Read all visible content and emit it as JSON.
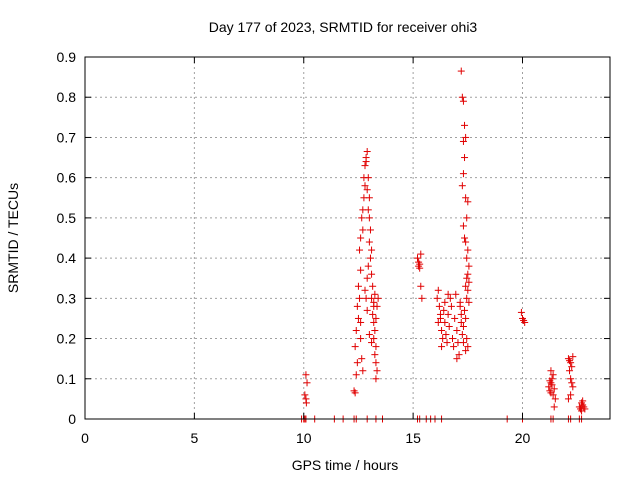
{
  "chart_data": {
    "type": "scatter",
    "title": "Day 177 of 2023, SRMTID for receiver ohi3",
    "xlabel": "GPS time / hours",
    "ylabel": "SRMTID / TECUs",
    "xlim": [
      0,
      24
    ],
    "ylim": [
      0,
      0.9
    ],
    "xticks": [
      0,
      5,
      10,
      15,
      20
    ],
    "xtick_labels": [
      "0",
      "5",
      "10",
      "15",
      "20"
    ],
    "yticks": [
      0,
      0.1,
      0.2,
      0.3,
      0.4,
      0.5,
      0.6,
      0.7,
      0.8,
      0.9
    ],
    "ytick_labels": [
      "0",
      "0.1",
      "0.2",
      "0.3",
      "0.4",
      "0.5",
      "0.6",
      "0.7",
      "0.8",
      "0.9"
    ],
    "grid": true,
    "marker": "+",
    "color": "#e00000",
    "series": [
      {
        "name": "SRMTID",
        "points": [
          [
            9.9,
            0
          ],
          [
            10.0,
            0
          ],
          [
            10.05,
            0
          ],
          [
            10.1,
            0
          ],
          [
            10.5,
            0
          ],
          [
            11.4,
            0
          ],
          [
            11.8,
            0
          ],
          [
            12.3,
            0
          ],
          [
            12.4,
            0
          ],
          [
            12.9,
            0
          ],
          [
            13.3,
            0
          ],
          [
            13.6,
            0
          ],
          [
            15.2,
            0
          ],
          [
            15.3,
            0
          ],
          [
            15.6,
            0
          ],
          [
            15.8,
            0
          ],
          [
            16.0,
            0
          ],
          [
            16.3,
            0
          ],
          [
            19.3,
            0
          ],
          [
            20.0,
            0
          ],
          [
            21.3,
            0
          ],
          [
            21.4,
            0
          ],
          [
            22.1,
            0
          ],
          [
            22.2,
            0
          ],
          [
            22.6,
            0
          ],
          [
            22.7,
            0
          ],
          [
            10.1,
            0.11
          ],
          [
            10.15,
            0.09
          ],
          [
            10.05,
            0.06
          ],
          [
            10.1,
            0.05
          ],
          [
            10.12,
            0.04
          ],
          [
            12.3,
            0.07
          ],
          [
            12.35,
            0.065
          ],
          [
            12.4,
            0.11
          ],
          [
            12.45,
            0.14
          ],
          [
            12.35,
            0.18
          ],
          [
            12.4,
            0.22
          ],
          [
            12.5,
            0.25
          ],
          [
            12.45,
            0.28
          ],
          [
            12.55,
            0.3
          ],
          [
            12.5,
            0.33
          ],
          [
            12.6,
            0.37
          ],
          [
            12.55,
            0.42
          ],
          [
            12.6,
            0.45
          ],
          [
            12.7,
            0.47
          ],
          [
            12.65,
            0.5
          ],
          [
            12.7,
            0.52
          ],
          [
            12.75,
            0.55
          ],
          [
            12.8,
            0.58
          ],
          [
            12.75,
            0.6
          ],
          [
            12.8,
            0.63
          ],
          [
            12.85,
            0.65
          ],
          [
            12.9,
            0.665
          ],
          [
            12.85,
            0.64
          ],
          [
            12.95,
            0.6
          ],
          [
            12.9,
            0.57
          ],
          [
            13.0,
            0.55
          ],
          [
            12.95,
            0.52
          ],
          [
            13.0,
            0.5
          ],
          [
            13.05,
            0.47
          ],
          [
            13.0,
            0.44
          ],
          [
            13.1,
            0.42
          ],
          [
            13.05,
            0.4
          ],
          [
            13.1,
            0.36
          ],
          [
            13.15,
            0.33
          ],
          [
            13.1,
            0.3
          ],
          [
            13.2,
            0.28
          ],
          [
            13.15,
            0.26
          ],
          [
            13.2,
            0.24
          ],
          [
            13.25,
            0.22
          ],
          [
            13.2,
            0.2
          ],
          [
            13.3,
            0.18
          ],
          [
            13.25,
            0.16
          ],
          [
            13.3,
            0.14
          ],
          [
            13.35,
            0.12
          ],
          [
            13.3,
            0.1
          ],
          [
            13.35,
            0.28
          ],
          [
            13.4,
            0.3
          ],
          [
            13.3,
            0.25
          ],
          [
            12.9,
            0.27
          ],
          [
            12.85,
            0.3
          ],
          [
            12.8,
            0.32
          ],
          [
            12.7,
            0.12
          ],
          [
            12.65,
            0.15
          ],
          [
            12.6,
            0.2
          ],
          [
            12.6,
            0.24
          ],
          [
            13.0,
            0.21
          ],
          [
            13.1,
            0.19
          ],
          [
            12.95,
            0.38
          ],
          [
            12.9,
            0.35
          ],
          [
            13.2,
            0.29
          ],
          [
            13.25,
            0.31
          ],
          [
            15.2,
            0.4
          ],
          [
            15.25,
            0.39
          ],
          [
            15.3,
            0.385
          ],
          [
            15.25,
            0.38
          ],
          [
            15.35,
            0.41
          ],
          [
            15.3,
            0.375
          ],
          [
            15.35,
            0.33
          ],
          [
            15.4,
            0.3
          ],
          [
            16.1,
            0.3
          ],
          [
            16.15,
            0.32
          ],
          [
            16.2,
            0.28
          ],
          [
            16.25,
            0.25
          ],
          [
            16.3,
            0.22
          ],
          [
            16.35,
            0.2
          ],
          [
            16.3,
            0.18
          ],
          [
            16.4,
            0.27
          ],
          [
            16.45,
            0.24
          ],
          [
            16.5,
            0.21
          ],
          [
            16.55,
            0.19
          ],
          [
            16.6,
            0.26
          ],
          [
            16.65,
            0.23
          ],
          [
            16.7,
            0.3
          ],
          [
            16.75,
            0.28
          ],
          [
            16.8,
            0.2
          ],
          [
            16.85,
            0.18
          ],
          [
            16.9,
            0.25
          ],
          [
            16.95,
            0.31
          ],
          [
            17.0,
            0.22
          ],
          [
            17.05,
            0.19
          ],
          [
            17.1,
            0.16
          ],
          [
            17.15,
            0.29
          ],
          [
            17.2,
            0.26
          ],
          [
            17.0,
            0.15
          ],
          [
            16.6,
            0.31
          ],
          [
            16.45,
            0.29
          ],
          [
            16.25,
            0.26
          ],
          [
            16.15,
            0.24
          ],
          [
            17.2,
            0.865
          ],
          [
            17.25,
            0.8
          ],
          [
            17.3,
            0.79
          ],
          [
            17.35,
            0.73
          ],
          [
            17.3,
            0.69
          ],
          [
            17.4,
            0.7
          ],
          [
            17.35,
            0.65
          ],
          [
            17.3,
            0.61
          ],
          [
            17.25,
            0.58
          ],
          [
            17.4,
            0.55
          ],
          [
            17.5,
            0.54
          ],
          [
            17.45,
            0.5
          ],
          [
            17.3,
            0.48
          ],
          [
            17.35,
            0.45
          ],
          [
            17.4,
            0.44
          ],
          [
            17.5,
            0.42
          ],
          [
            17.45,
            0.4
          ],
          [
            17.55,
            0.38
          ],
          [
            17.5,
            0.36
          ],
          [
            17.45,
            0.35
          ],
          [
            17.55,
            0.34
          ],
          [
            17.4,
            0.33
          ],
          [
            17.5,
            0.32
          ],
          [
            17.45,
            0.3
          ],
          [
            17.55,
            0.29
          ],
          [
            17.35,
            0.27
          ],
          [
            17.4,
            0.25
          ],
          [
            17.3,
            0.23
          ],
          [
            17.45,
            0.2
          ],
          [
            17.5,
            0.18
          ],
          [
            17.4,
            0.17
          ],
          [
            17.3,
            0.19
          ],
          [
            17.25,
            0.21
          ],
          [
            17.2,
            0.24
          ],
          [
            17.15,
            0.28
          ],
          [
            19.95,
            0.265
          ],
          [
            20.0,
            0.25
          ],
          [
            20.05,
            0.245
          ],
          [
            20.1,
            0.24
          ],
          [
            21.2,
            0.08
          ],
          [
            21.25,
            0.07
          ],
          [
            21.3,
            0.12
          ],
          [
            21.35,
            0.1
          ],
          [
            21.3,
            0.09
          ],
          [
            21.4,
            0.11
          ],
          [
            21.35,
            0.085
          ],
          [
            21.45,
            0.075
          ],
          [
            21.4,
            0.06
          ],
          [
            21.5,
            0.05
          ],
          [
            21.45,
            0.03
          ],
          [
            21.3,
            0.065
          ],
          [
            21.25,
            0.095
          ],
          [
            22.1,
            0.15
          ],
          [
            22.15,
            0.145
          ],
          [
            22.2,
            0.14
          ],
          [
            22.25,
            0.13
          ],
          [
            22.15,
            0.12
          ],
          [
            22.2,
            0.1
          ],
          [
            22.25,
            0.09
          ],
          [
            22.3,
            0.08
          ],
          [
            22.2,
            0.06
          ],
          [
            22.1,
            0.05
          ],
          [
            22.3,
            0.155
          ],
          [
            22.6,
            0.03
          ],
          [
            22.65,
            0.025
          ],
          [
            22.7,
            0.04
          ],
          [
            22.75,
            0.035
          ],
          [
            22.7,
            0.02
          ],
          [
            22.8,
            0.03
          ],
          [
            22.75,
            0.045
          ],
          [
            22.85,
            0.025
          ]
        ]
      }
    ]
  }
}
